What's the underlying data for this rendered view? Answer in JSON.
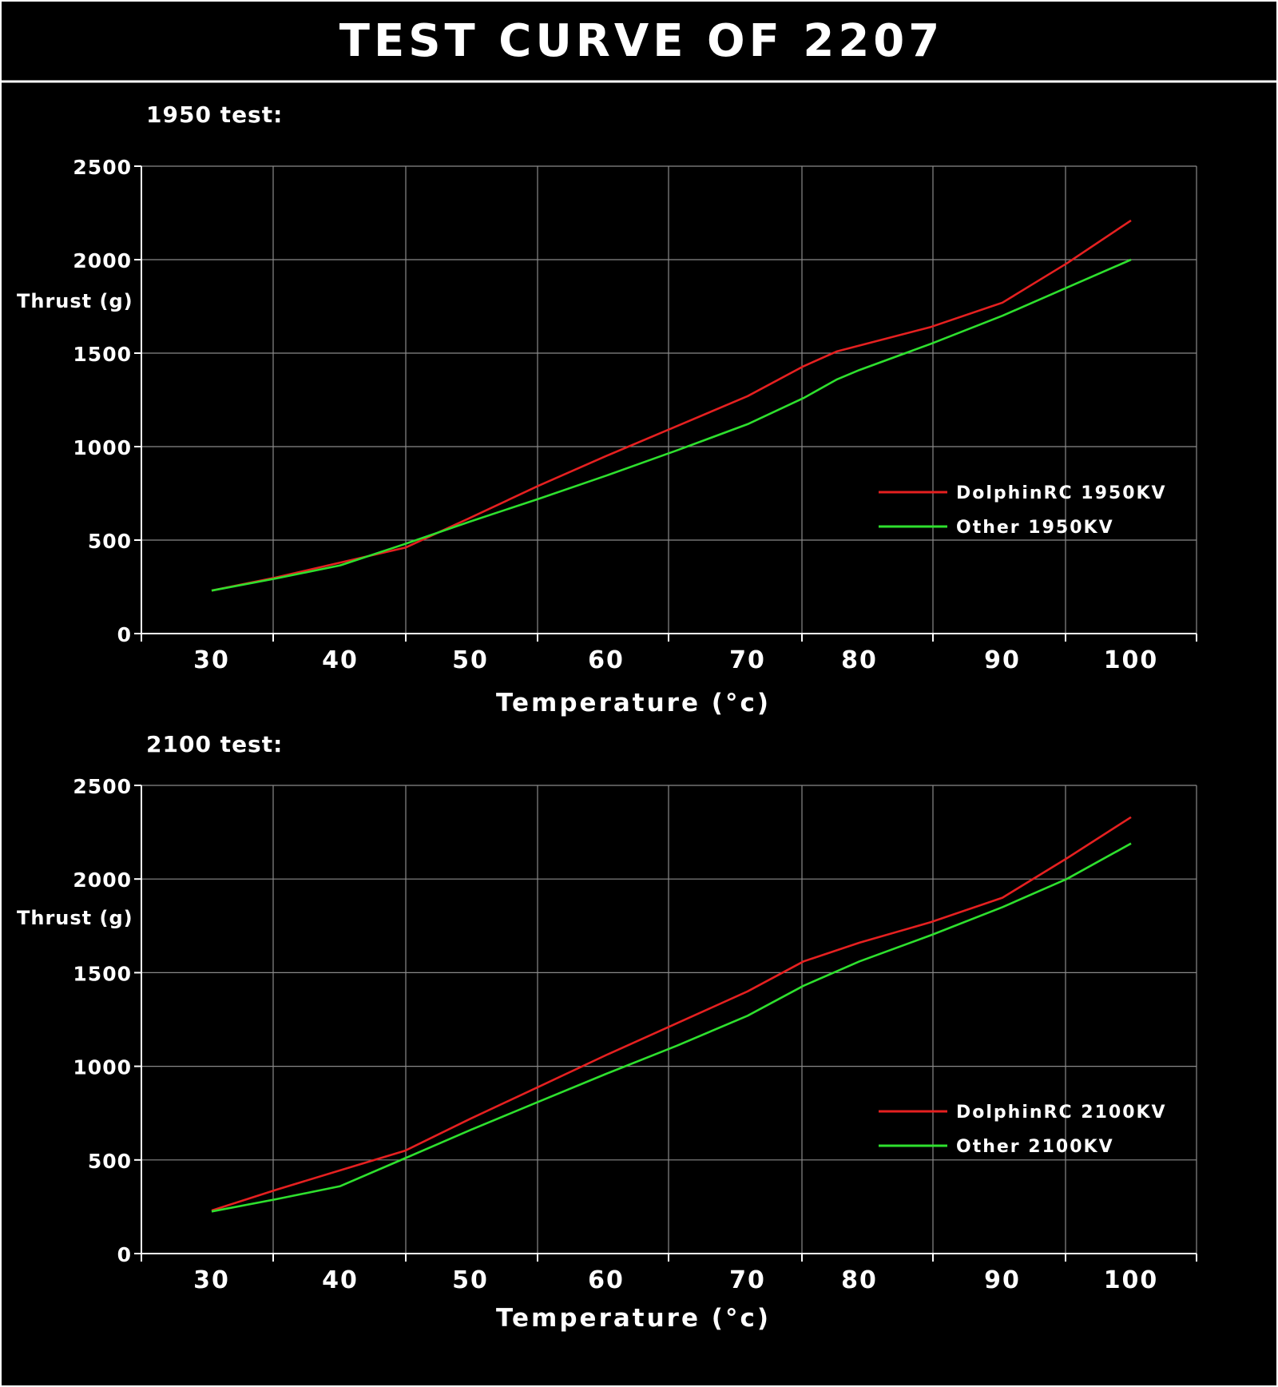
{
  "page": {
    "title": "TEST CURVE OF 2207",
    "background": "#000000",
    "grid_color": "#8a8a8a"
  },
  "chart_data": [
    {
      "type": "line",
      "title": "1950 test:",
      "xlabel": "Temperature (°c)",
      "ylabel": "Thrust (g)",
      "x_ticks": [
        "30",
        "40",
        "50",
        "60",
        "70",
        "80",
        "90",
        "100"
      ],
      "y_ticks": [
        "0",
        "500",
        "1000",
        "1500",
        "2000",
        "2500"
      ],
      "ylim": [
        0,
        2500
      ],
      "grid": true,
      "legend": "right-middle",
      "series": [
        {
          "name": "DolphinRC 1950KV",
          "color": "#e52020",
          "x": [
            30,
            35,
            40,
            45,
            50,
            55,
            60,
            65,
            70,
            75,
            78,
            85,
            90,
            95,
            100
          ],
          "y": [
            230,
            300,
            380,
            460,
            620,
            790,
            950,
            1110,
            1270,
            1430,
            1510,
            1640,
            1770,
            1980,
            2210
          ]
        },
        {
          "name": "Other 1950KV",
          "color": "#2ee02e",
          "x": [
            30,
            35,
            40,
            45,
            50,
            55,
            60,
            65,
            70,
            75,
            78,
            80,
            85,
            90,
            95,
            100
          ],
          "y": [
            230,
            295,
            365,
            480,
            600,
            720,
            845,
            980,
            1120,
            1260,
            1360,
            1410,
            1550,
            1700,
            1850,
            2000
          ]
        }
      ]
    },
    {
      "type": "line",
      "title": "2100 test:",
      "xlabel": "Temperature (°c)",
      "ylabel": "Thrust (g)",
      "x_ticks": [
        "30",
        "40",
        "50",
        "60",
        "70",
        "80",
        "90",
        "100"
      ],
      "y_ticks": [
        "0",
        "500",
        "1000",
        "1500",
        "2000",
        "2500"
      ],
      "ylim": [
        0,
        2500
      ],
      "grid": true,
      "legend": "right-middle",
      "series": [
        {
          "name": "DolphinRC 2100KV",
          "color": "#e52020",
          "x": [
            30,
            35,
            40,
            45,
            50,
            55,
            60,
            65,
            70,
            75,
            80,
            85,
            90,
            95,
            100
          ],
          "y": [
            230,
            340,
            445,
            550,
            720,
            890,
            1060,
            1230,
            1400,
            1560,
            1660,
            1770,
            1900,
            2110,
            2330
          ]
        },
        {
          "name": "Other 2100KV",
          "color": "#2ee02e",
          "x": [
            30,
            35,
            40,
            45,
            50,
            55,
            60,
            65,
            70,
            75,
            80,
            85,
            90,
            95,
            100
          ],
          "y": [
            225,
            290,
            360,
            510,
            660,
            810,
            960,
            1110,
            1270,
            1430,
            1560,
            1700,
            1850,
            2000,
            2190
          ]
        }
      ]
    }
  ]
}
